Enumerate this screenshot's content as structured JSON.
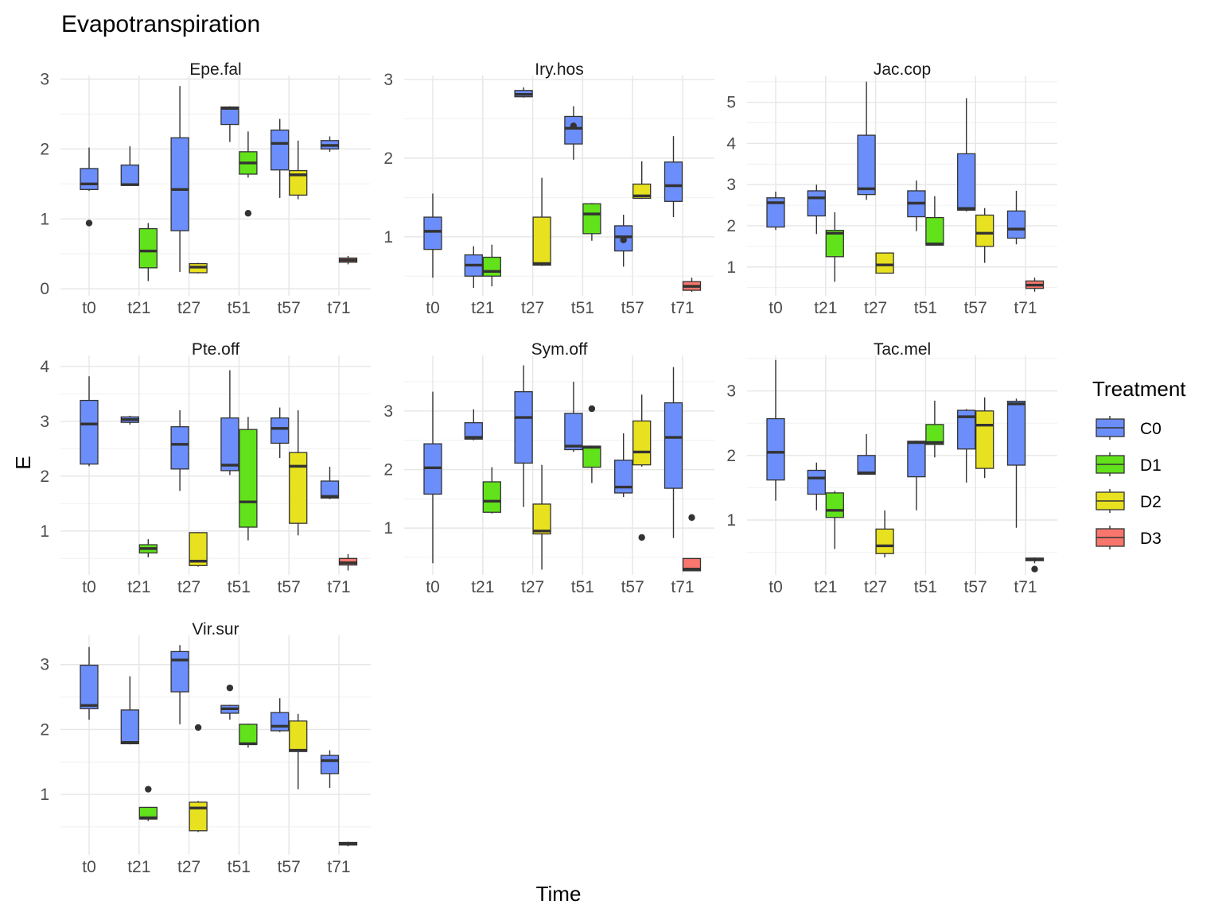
{
  "chart_data": {
    "type": "boxplot",
    "title": "Evapotranspiration",
    "xlabel": "Time",
    "ylabel": "E",
    "legend": {
      "title": "Treatment",
      "placement": "right",
      "entries": [
        {
          "name": "C0",
          "color": "#6b8efa"
        },
        {
          "name": "D1",
          "color": "#62e21a"
        },
        {
          "name": "D2",
          "color": "#e8e11f"
        },
        {
          "name": "D3",
          "color": "#f8766d"
        }
      ]
    },
    "categories": [
      "t0",
      "t21",
      "t27",
      "t51",
      "t57",
      "t71"
    ],
    "treatments": [
      "C0",
      "D1",
      "D2",
      "D3"
    ],
    "panels": [
      {
        "title": "Epe.fal",
        "ylim": [
          -0.1,
          3.05
        ],
        "yticks": [
          0,
          1,
          2,
          3
        ],
        "boxes": [
          {
            "cat": "t0",
            "trt": "C0",
            "q1": 1.42,
            "med": 1.5,
            "q3": 1.72,
            "wlo": 1.4,
            "whi": 2.02,
            "out": [
              0.94
            ]
          },
          {
            "cat": "t21",
            "trt": "C0",
            "q1": 1.48,
            "med": 1.49,
            "q3": 1.77,
            "wlo": 1.48,
            "whi": 2.04,
            "out": []
          },
          {
            "cat": "t21",
            "trt": "D1",
            "q1": 0.3,
            "med": 0.54,
            "q3": 0.86,
            "wlo": 0.11,
            "whi": 0.94,
            "out": []
          },
          {
            "cat": "t27",
            "trt": "C0",
            "q1": 0.83,
            "med": 1.42,
            "q3": 2.16,
            "wlo": 0.24,
            "whi": 2.9,
            "out": []
          },
          {
            "cat": "t27",
            "trt": "D2",
            "q1": 0.23,
            "med": 0.31,
            "q3": 0.36,
            "wlo": 0.22,
            "whi": 0.37,
            "out": []
          },
          {
            "cat": "t51",
            "trt": "C0",
            "q1": 2.35,
            "med": 2.58,
            "q3": 2.6,
            "wlo": 2.1,
            "whi": 2.61,
            "out": []
          },
          {
            "cat": "t51",
            "trt": "D1",
            "q1": 1.64,
            "med": 1.8,
            "q3": 1.96,
            "wlo": 1.59,
            "whi": 2.25,
            "out": [
              1.08
            ]
          },
          {
            "cat": "t57",
            "trt": "C0",
            "q1": 1.7,
            "med": 2.08,
            "q3": 2.27,
            "wlo": 1.3,
            "whi": 2.43,
            "out": []
          },
          {
            "cat": "t57",
            "trt": "D2",
            "q1": 1.34,
            "med": 1.63,
            "q3": 1.69,
            "wlo": 1.28,
            "whi": 2.12,
            "out": []
          },
          {
            "cat": "t71",
            "trt": "C0",
            "q1": 2.0,
            "med": 2.05,
            "q3": 2.12,
            "wlo": 1.96,
            "whi": 2.18,
            "out": []
          },
          {
            "cat": "t71",
            "trt": "D3",
            "q1": 0.38,
            "med": 0.41,
            "q3": 0.44,
            "wlo": 0.35,
            "whi": 0.47,
            "out": []
          }
        ]
      },
      {
        "title": "Iry.hos",
        "ylim": [
          0.25,
          3.05
        ],
        "yticks": [
          1,
          2,
          3
        ],
        "boxes": [
          {
            "cat": "t0",
            "trt": "C0",
            "q1": 0.84,
            "med": 1.07,
            "q3": 1.25,
            "wlo": 0.48,
            "whi": 1.55,
            "out": []
          },
          {
            "cat": "t21",
            "trt": "C0",
            "q1": 0.5,
            "med": 0.64,
            "q3": 0.77,
            "wlo": 0.35,
            "whi": 0.88,
            "out": []
          },
          {
            "cat": "t21",
            "trt": "D1",
            "q1": 0.5,
            "med": 0.56,
            "q3": 0.74,
            "wlo": 0.37,
            "whi": 0.9,
            "out": []
          },
          {
            "cat": "t27",
            "trt": "C0",
            "q1": 2.78,
            "med": 2.81,
            "q3": 2.86,
            "wlo": 2.77,
            "whi": 2.9,
            "out": []
          },
          {
            "cat": "t27",
            "trt": "D2",
            "q1": 0.64,
            "med": 0.66,
            "q3": 1.25,
            "wlo": 0.63,
            "whi": 1.75,
            "out": []
          },
          {
            "cat": "t51",
            "trt": "C0",
            "q1": 2.18,
            "med": 2.38,
            "q3": 2.53,
            "wlo": 1.98,
            "whi": 2.66,
            "out": [
              2.41
            ]
          },
          {
            "cat": "t51",
            "trt": "D1",
            "q1": 1.04,
            "med": 1.29,
            "q3": 1.42,
            "wlo": 0.95,
            "whi": 1.43,
            "out": []
          },
          {
            "cat": "t57",
            "trt": "C0",
            "q1": 0.82,
            "med": 1.0,
            "q3": 1.14,
            "wlo": 0.62,
            "whi": 1.28,
            "out": [
              0.96
            ]
          },
          {
            "cat": "t57",
            "trt": "D2",
            "q1": 1.49,
            "med": 1.52,
            "q3": 1.67,
            "wlo": 1.48,
            "whi": 1.96,
            "out": []
          },
          {
            "cat": "t71",
            "trt": "C0",
            "q1": 1.45,
            "med": 1.65,
            "q3": 1.95,
            "wlo": 1.25,
            "whi": 2.28,
            "out": []
          },
          {
            "cat": "t71",
            "trt": "D3",
            "q1": 0.32,
            "med": 0.37,
            "q3": 0.43,
            "wlo": 0.3,
            "whi": 0.48,
            "out": []
          }
        ]
      },
      {
        "title": "Jac.cop",
        "ylim": [
          0.3,
          5.65
        ],
        "yticks": [
          1,
          2,
          3,
          4,
          5
        ],
        "boxes": [
          {
            "cat": "t0",
            "trt": "C0",
            "q1": 1.97,
            "med": 2.56,
            "q3": 2.68,
            "wlo": 1.9,
            "whi": 2.83,
            "out": []
          },
          {
            "cat": "t21",
            "trt": "C0",
            "q1": 2.24,
            "med": 2.68,
            "q3": 2.85,
            "wlo": 1.8,
            "whi": 3.0,
            "out": []
          },
          {
            "cat": "t21",
            "trt": "D1",
            "q1": 1.25,
            "med": 1.82,
            "q3": 1.89,
            "wlo": 0.64,
            "whi": 2.33,
            "out": []
          },
          {
            "cat": "t27",
            "trt": "C0",
            "q1": 2.76,
            "med": 2.9,
            "q3": 4.2,
            "wlo": 2.63,
            "whi": 5.5,
            "out": []
          },
          {
            "cat": "t27",
            "trt": "D2",
            "q1": 0.85,
            "med": 1.05,
            "q3": 1.34,
            "wlo": 0.84,
            "whi": 1.35,
            "out": []
          },
          {
            "cat": "t51",
            "trt": "C0",
            "q1": 2.22,
            "med": 2.55,
            "q3": 2.85,
            "wlo": 1.87,
            "whi": 3.1,
            "out": []
          },
          {
            "cat": "t51",
            "trt": "D1",
            "q1": 1.53,
            "med": 1.56,
            "q3": 2.2,
            "wlo": 1.52,
            "whi": 2.72,
            "out": []
          },
          {
            "cat": "t57",
            "trt": "C0",
            "q1": 2.38,
            "med": 2.42,
            "q3": 3.75,
            "wlo": 2.35,
            "whi": 5.1,
            "out": []
          },
          {
            "cat": "t57",
            "trt": "D2",
            "q1": 1.5,
            "med": 1.82,
            "q3": 2.26,
            "wlo": 1.1,
            "whi": 2.43,
            "out": []
          },
          {
            "cat": "t71",
            "trt": "C0",
            "q1": 1.7,
            "med": 1.92,
            "q3": 2.36,
            "wlo": 1.55,
            "whi": 2.85,
            "out": []
          },
          {
            "cat": "t71",
            "trt": "D3",
            "q1": 0.48,
            "med": 0.56,
            "q3": 0.66,
            "wlo": 0.4,
            "whi": 0.74,
            "out": []
          }
        ]
      },
      {
        "title": "Pte.off",
        "ylim": [
          0.2,
          4.2
        ],
        "yticks": [
          1,
          2,
          3,
          4
        ],
        "boxes": [
          {
            "cat": "t0",
            "trt": "C0",
            "q1": 2.22,
            "med": 2.95,
            "q3": 3.38,
            "wlo": 2.18,
            "whi": 3.82,
            "out": []
          },
          {
            "cat": "t21",
            "trt": "C0",
            "q1": 2.98,
            "med": 3.03,
            "q3": 3.08,
            "wlo": 2.94,
            "whi": 3.1,
            "out": []
          },
          {
            "cat": "t21",
            "trt": "D1",
            "q1": 0.6,
            "med": 0.68,
            "q3": 0.75,
            "wlo": 0.52,
            "whi": 0.85,
            "out": []
          },
          {
            "cat": "t27",
            "trt": "C0",
            "q1": 2.13,
            "med": 2.58,
            "q3": 2.9,
            "wlo": 1.73,
            "whi": 3.2,
            "out": []
          },
          {
            "cat": "t27",
            "trt": "D2",
            "q1": 0.37,
            "med": 0.45,
            "q3": 0.97,
            "wlo": 0.35,
            "whi": 0.98,
            "out": []
          },
          {
            "cat": "t51",
            "trt": "C0",
            "q1": 2.1,
            "med": 2.2,
            "q3": 3.06,
            "wlo": 2.02,
            "whi": 3.93,
            "out": []
          },
          {
            "cat": "t51",
            "trt": "D1",
            "q1": 1.07,
            "med": 1.53,
            "q3": 2.85,
            "wlo": 0.83,
            "whi": 3.08,
            "out": []
          },
          {
            "cat": "t57",
            "trt": "C0",
            "q1": 2.6,
            "med": 2.87,
            "q3": 3.06,
            "wlo": 2.33,
            "whi": 3.25,
            "out": []
          },
          {
            "cat": "t57",
            "trt": "D2",
            "q1": 1.14,
            "med": 2.18,
            "q3": 2.43,
            "wlo": 0.92,
            "whi": 3.2,
            "out": []
          },
          {
            "cat": "t71",
            "trt": "C0",
            "q1": 1.6,
            "med": 1.63,
            "q3": 1.91,
            "wlo": 1.58,
            "whi": 2.17,
            "out": []
          },
          {
            "cat": "t71",
            "trt": "D3",
            "q1": 0.38,
            "med": 0.42,
            "q3": 0.5,
            "wlo": 0.28,
            "whi": 0.58,
            "out": []
          }
        ]
      },
      {
        "title": "Sym.off",
        "ylim": [
          0.2,
          3.95
        ],
        "yticks": [
          1,
          2,
          3
        ],
        "boxes": [
          {
            "cat": "t0",
            "trt": "C0",
            "q1": 1.58,
            "med": 2.03,
            "q3": 2.44,
            "wlo": 0.4,
            "whi": 3.33,
            "out": []
          },
          {
            "cat": "t21",
            "trt": "C0",
            "q1": 2.52,
            "med": 2.55,
            "q3": 2.8,
            "wlo": 2.5,
            "whi": 3.03,
            "out": []
          },
          {
            "cat": "t21",
            "trt": "D1",
            "q1": 1.27,
            "med": 1.46,
            "q3": 1.79,
            "wlo": 1.25,
            "whi": 2.04,
            "out": []
          },
          {
            "cat": "t27",
            "trt": "C0",
            "q1": 2.11,
            "med": 2.89,
            "q3": 3.33,
            "wlo": 1.36,
            "whi": 3.78,
            "out": []
          },
          {
            "cat": "t27",
            "trt": "D2",
            "q1": 0.9,
            "med": 0.95,
            "q3": 1.41,
            "wlo": 0.29,
            "whi": 2.08,
            "out": []
          },
          {
            "cat": "t51",
            "trt": "C0",
            "q1": 2.34,
            "med": 2.4,
            "q3": 2.96,
            "wlo": 2.3,
            "whi": 3.5,
            "out": []
          },
          {
            "cat": "t51",
            "trt": "D1",
            "q1": 2.04,
            "med": 2.38,
            "q3": 2.4,
            "wlo": 1.77,
            "whi": 2.41,
            "out": [
              3.04
            ]
          },
          {
            "cat": "t57",
            "trt": "C0",
            "q1": 1.6,
            "med": 1.7,
            "q3": 2.16,
            "wlo": 1.53,
            "whi": 2.62,
            "out": []
          },
          {
            "cat": "t57",
            "trt": "D2",
            "q1": 2.08,
            "med": 2.3,
            "q3": 2.83,
            "wlo": 2.05,
            "whi": 3.28,
            "out": [
              0.84
            ]
          },
          {
            "cat": "t71",
            "trt": "C0",
            "q1": 1.68,
            "med": 2.55,
            "q3": 3.14,
            "wlo": 0.83,
            "whi": 3.75,
            "out": []
          },
          {
            "cat": "t71",
            "trt": "D3",
            "q1": 0.27,
            "med": 0.3,
            "q3": 0.48,
            "wlo": 0.27,
            "whi": 0.48,
            "out": [
              1.18
            ]
          }
        ]
      },
      {
        "title": "Tac.mel",
        "ylim": [
          0.15,
          3.55
        ],
        "yticks": [
          1,
          2,
          3
        ],
        "boxes": [
          {
            "cat": "t0",
            "trt": "C0",
            "q1": 1.62,
            "med": 2.05,
            "q3": 2.57,
            "wlo": 1.3,
            "whi": 3.48,
            "out": []
          },
          {
            "cat": "t21",
            "trt": "C0",
            "q1": 1.4,
            "med": 1.65,
            "q3": 1.77,
            "wlo": 1.15,
            "whi": 1.89,
            "out": []
          },
          {
            "cat": "t21",
            "trt": "D1",
            "q1": 1.04,
            "med": 1.15,
            "q3": 1.42,
            "wlo": 0.55,
            "whi": 1.45,
            "out": []
          },
          {
            "cat": "t27",
            "trt": "C0",
            "q1": 1.71,
            "med": 1.73,
            "q3": 2.0,
            "wlo": 1.7,
            "whi": 2.33,
            "out": []
          },
          {
            "cat": "t27",
            "trt": "D2",
            "q1": 0.48,
            "med": 0.6,
            "q3": 0.86,
            "wlo": 0.42,
            "whi": 1.15,
            "out": []
          },
          {
            "cat": "t51",
            "trt": "C0",
            "q1": 1.67,
            "med": 2.2,
            "q3": 2.22,
            "wlo": 1.15,
            "whi": 2.23,
            "out": []
          },
          {
            "cat": "t51",
            "trt": "D1",
            "q1": 2.17,
            "med": 2.2,
            "q3": 2.48,
            "wlo": 1.97,
            "whi": 2.85,
            "out": []
          },
          {
            "cat": "t57",
            "trt": "C0",
            "q1": 2.1,
            "med": 2.6,
            "q3": 2.7,
            "wlo": 1.58,
            "whi": 2.72,
            "out": []
          },
          {
            "cat": "t57",
            "trt": "D2",
            "q1": 1.8,
            "med": 2.47,
            "q3": 2.69,
            "wlo": 1.65,
            "whi": 2.9,
            "out": []
          },
          {
            "cat": "t71",
            "trt": "C0",
            "q1": 1.85,
            "med": 2.8,
            "q3": 2.84,
            "wlo": 0.88,
            "whi": 2.88,
            "out": []
          },
          {
            "cat": "t71",
            "trt": "D3",
            "q1": 0.37,
            "med": 0.39,
            "q3": 0.41,
            "wlo": 0.33,
            "whi": 0.42,
            "out": [
              0.24
            ]
          }
        ]
      },
      {
        "title": "Vir.sur",
        "ylim": [
          0.07,
          3.45
        ],
        "yticks": [
          1,
          2,
          3
        ],
        "boxes": [
          {
            "cat": "t0",
            "trt": "C0",
            "q1": 2.32,
            "med": 2.37,
            "q3": 2.99,
            "wlo": 2.15,
            "whi": 3.27,
            "out": []
          },
          {
            "cat": "t21",
            "trt": "C0",
            "q1": 1.78,
            "med": 1.8,
            "q3": 2.3,
            "wlo": 1.77,
            "whi": 2.82,
            "out": []
          },
          {
            "cat": "t21",
            "trt": "D1",
            "q1": 0.62,
            "med": 0.64,
            "q3": 0.8,
            "wlo": 0.59,
            "whi": 0.8,
            "out": [
              1.08
            ]
          },
          {
            "cat": "t27",
            "trt": "C0",
            "q1": 2.58,
            "med": 3.07,
            "q3": 3.2,
            "wlo": 2.08,
            "whi": 3.3,
            "out": []
          },
          {
            "cat": "t27",
            "trt": "D2",
            "q1": 0.44,
            "med": 0.79,
            "q3": 0.88,
            "wlo": 0.42,
            "whi": 0.9,
            "out": [
              2.03
            ]
          },
          {
            "cat": "t51",
            "trt": "C0",
            "q1": 2.25,
            "med": 2.32,
            "q3": 2.37,
            "wlo": 2.15,
            "whi": 2.38,
            "out": [
              2.64
            ]
          },
          {
            "cat": "t51",
            "trt": "D1",
            "q1": 1.77,
            "med": 1.78,
            "q3": 2.08,
            "wlo": 1.72,
            "whi": 2.09,
            "out": []
          },
          {
            "cat": "t57",
            "trt": "C0",
            "q1": 1.98,
            "med": 2.05,
            "q3": 2.26,
            "wlo": 1.96,
            "whi": 2.48,
            "out": []
          },
          {
            "cat": "t57",
            "trt": "D2",
            "q1": 1.66,
            "med": 1.68,
            "q3": 2.13,
            "wlo": 1.08,
            "whi": 2.24,
            "out": []
          },
          {
            "cat": "t71",
            "trt": "C0",
            "q1": 1.32,
            "med": 1.52,
            "q3": 1.6,
            "wlo": 1.1,
            "whi": 1.68,
            "out": []
          },
          {
            "cat": "t71",
            "trt": "D3",
            "q1": 0.22,
            "med": 0.24,
            "q3": 0.26,
            "wlo": 0.2,
            "whi": 0.27,
            "out": []
          }
        ]
      }
    ]
  }
}
